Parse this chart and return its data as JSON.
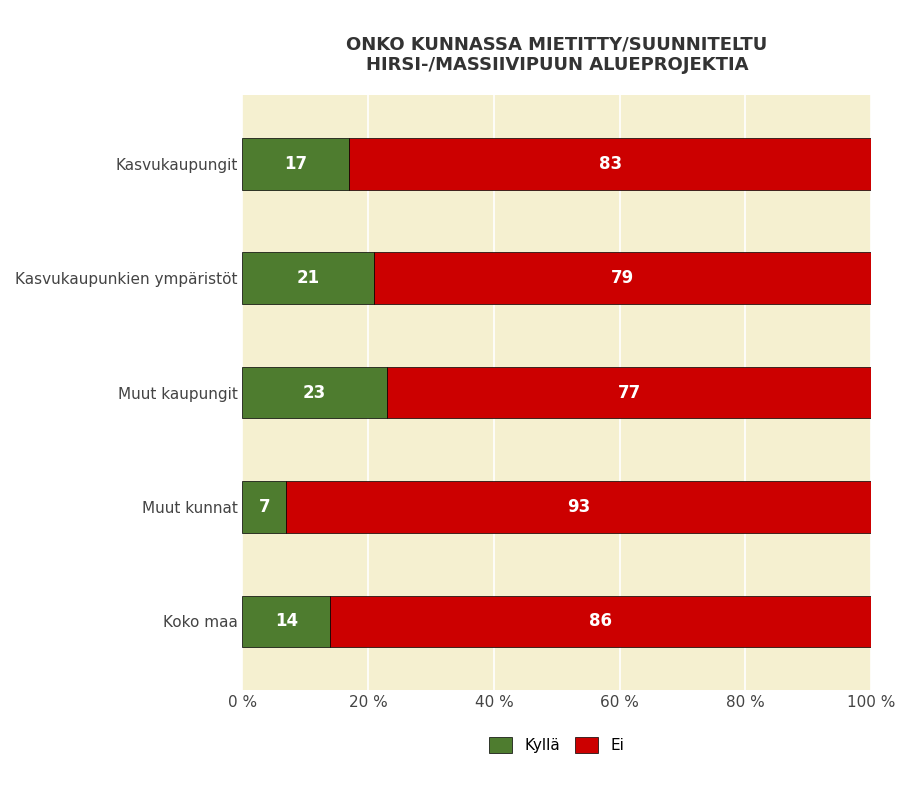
{
  "title": "ONKO KUNNASSA MIETITTY/SUUNNITELTU\nHIRSI-/MASSIIVIPUUN ALUEPROJEKTIA",
  "categories": [
    "Kasvukaupungit",
    "Kasvukaupunkien ympäristöt",
    "Muut kaupungit",
    "Muut kunnat",
    "Koko maa"
  ],
  "kylla_values": [
    17,
    21,
    23,
    7,
    14
  ],
  "ei_values": [
    83,
    79,
    77,
    93,
    86
  ],
  "kylla_color": "#4e7c2f",
  "ei_color": "#cc0000",
  "background_color": "#f5f0d0",
  "plot_bg_color": "#f5f0d0",
  "fig_bg_color": "#ffffff",
  "title_fontsize": 13,
  "label_fontsize": 11,
  "tick_fontsize": 11,
  "bar_label_fontsize": 12,
  "legend_fontsize": 11,
  "xticks": [
    0,
    20,
    40,
    60,
    80,
    100
  ],
  "xtick_labels": [
    "0 %",
    "20 %",
    "40 %",
    "60 %",
    "80 %",
    "100 %"
  ],
  "legend_labels": [
    "Kyllä",
    "Ei"
  ]
}
